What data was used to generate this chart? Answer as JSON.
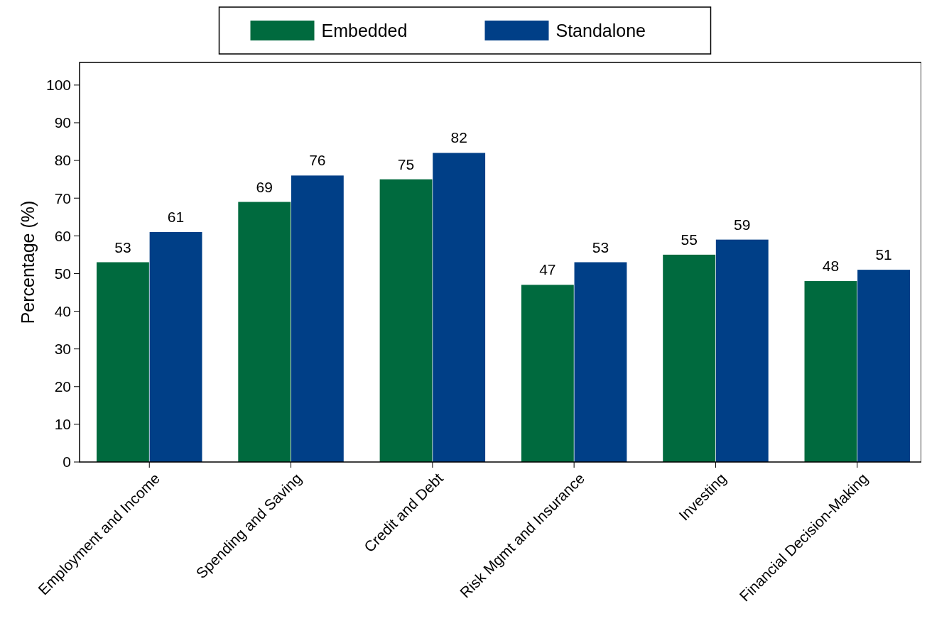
{
  "chart_data": {
    "type": "bar",
    "ylabel": "Percentage (%)",
    "categories": [
      "Employment and Income",
      "Spending and Saving",
      "Credit and Debt",
      "Risk Mgmt and Insurance",
      "Investing",
      "Financial Decision-Making"
    ],
    "series": [
      {
        "name": "Embedded",
        "color": "#006a3e",
        "values": [
          53,
          69,
          75,
          47,
          55,
          48
        ]
      },
      {
        "name": "Standalone",
        "color": "#003f87",
        "values": [
          61,
          76,
          82,
          53,
          59,
          51
        ]
      }
    ],
    "ylim": [
      0,
      106
    ],
    "yticks": [
      0,
      10,
      20,
      30,
      40,
      50,
      60,
      70,
      80,
      90,
      100
    ],
    "grid": false,
    "legend": "top",
    "data_labels": true
  }
}
